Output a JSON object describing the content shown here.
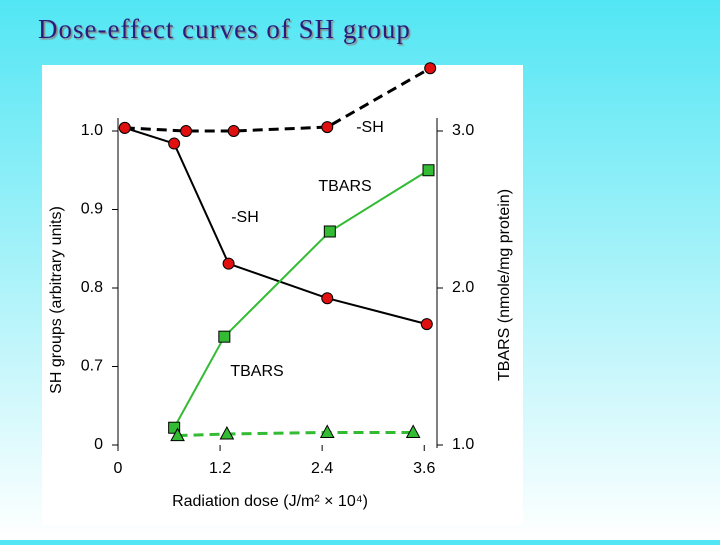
{
  "chart_data": {
    "type": "line",
    "title": "Dose-effect curves of SH group",
    "xlabel": "Radiation dose (J/m² × 10⁴)",
    "ylabel": "SH groups (arbitrary units)",
    "y2label": "TBARS (nmole/mg protein)",
    "xlim": [
      0,
      3.75
    ],
    "xticks": [
      0,
      1.2,
      2.4,
      3.6
    ],
    "ylim": [
      0,
      1.0
    ],
    "yticks": [
      0,
      0.7,
      0.8,
      0.9,
      {
        "value": 1.0,
        "label": "1.0"
      }
    ],
    "y2lim": [
      1.0,
      3.0
    ],
    "y2ticks": [
      {
        "value": 1.0,
        "label": "1.0"
      },
      {
        "value": 2.0,
        "label": "2.0"
      },
      {
        "value": 3.0,
        "label": "3.0"
      }
    ],
    "series": [
      {
        "name": "-SH",
        "color": "#000000",
        "marker_color": "#e01010",
        "marker": "circle",
        "line": "solid",
        "x": [
          0.08,
          0.66,
          1.3,
          2.46,
          3.63
        ],
        "values": [
          1.004,
          0.984,
          0.831,
          0.787,
          0.754
        ]
      },
      {
        "name": "-SH",
        "color": "#000000",
        "marker_color": "#e01010",
        "marker": "circle",
        "line": "dashed",
        "x": [
          0.08,
          0.8,
          1.36,
          2.46,
          3.67
        ],
        "values": [
          1.004,
          1.0,
          1.0,
          1.005,
          1.08
        ]
      },
      {
        "name": "TBARS",
        "color": "#33bb33",
        "marker_color": "#33bb33",
        "marker": "square",
        "line": "solid",
        "axis": "y2",
        "x": [
          0.66,
          1.25,
          2.49,
          3.65
        ],
        "values": [
          1.11,
          1.69,
          2.36,
          2.75
        ]
      },
      {
        "name": "TBARS",
        "color": "#33bb33",
        "marker_color": "#33bb33",
        "marker": "triangle",
        "line": "dashed",
        "axis": "y2",
        "x": [
          0.7,
          1.28,
          2.46,
          3.47
        ],
        "values": [
          1.06,
          1.07,
          1.08,
          1.08
        ]
      }
    ]
  }
}
